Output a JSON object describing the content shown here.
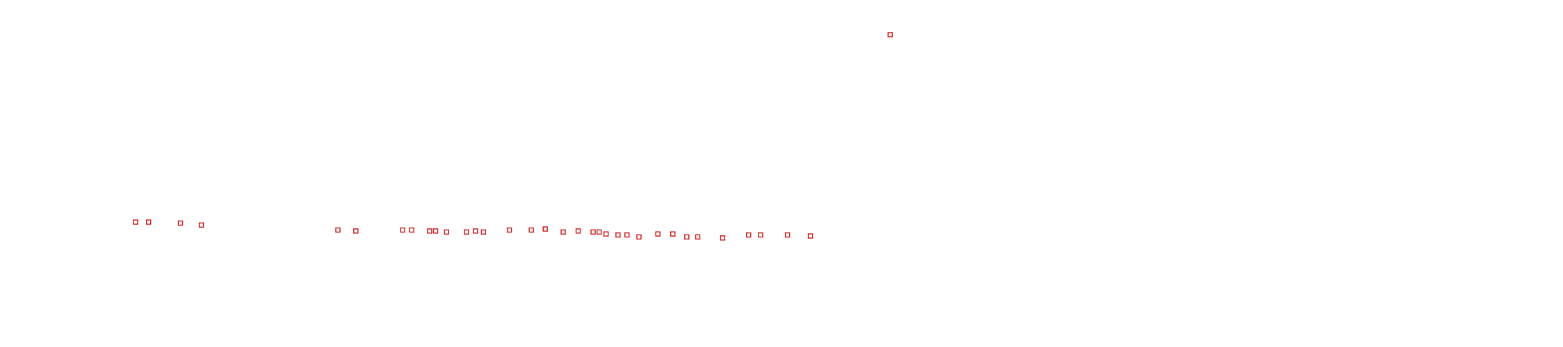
{
  "chart_data": {
    "type": "scatter",
    "color": "#d62728",
    "xlim": [
      0,
      1568
    ],
    "ylim": [
      0,
      350
    ],
    "x": [
      893,
      136,
      149,
      181,
      202,
      339,
      357,
      404,
      413,
      431,
      437,
      448,
      468,
      477,
      485,
      511,
      533,
      547,
      565,
      580,
      595,
      601,
      608,
      620,
      629,
      641,
      660,
      675,
      689,
      700,
      725,
      751,
      763,
      790,
      813
    ],
    "values": [
      315,
      126,
      126,
      125,
      123,
      118,
      117,
      118,
      118,
      117,
      117,
      116,
      116,
      117,
      116,
      118,
      118,
      119,
      116,
      117,
      116,
      116,
      114,
      113,
      113,
      111,
      114,
      114,
      111,
      111,
      110,
      113,
      113,
      113,
      112
    ]
  }
}
